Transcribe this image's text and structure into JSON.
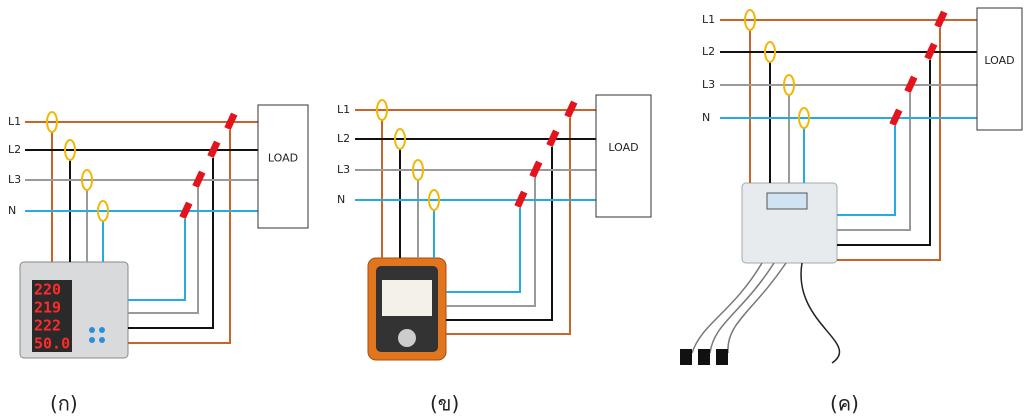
{
  "panels": [
    {
      "lines": [
        "L1",
        "L2",
        "L3",
        "N"
      ],
      "load": "LOAD",
      "caption": "(ก)",
      "meter_readings": [
        "220",
        "219",
        "222",
        "50.0"
      ]
    },
    {
      "lines": [
        "L1",
        "L2",
        "L3",
        "N"
      ],
      "load": "LOAD",
      "caption": "(ข)"
    },
    {
      "lines": [
        "L1",
        "L2",
        "L3",
        "N"
      ],
      "load": "LOAD",
      "caption": "(ค)"
    }
  ]
}
